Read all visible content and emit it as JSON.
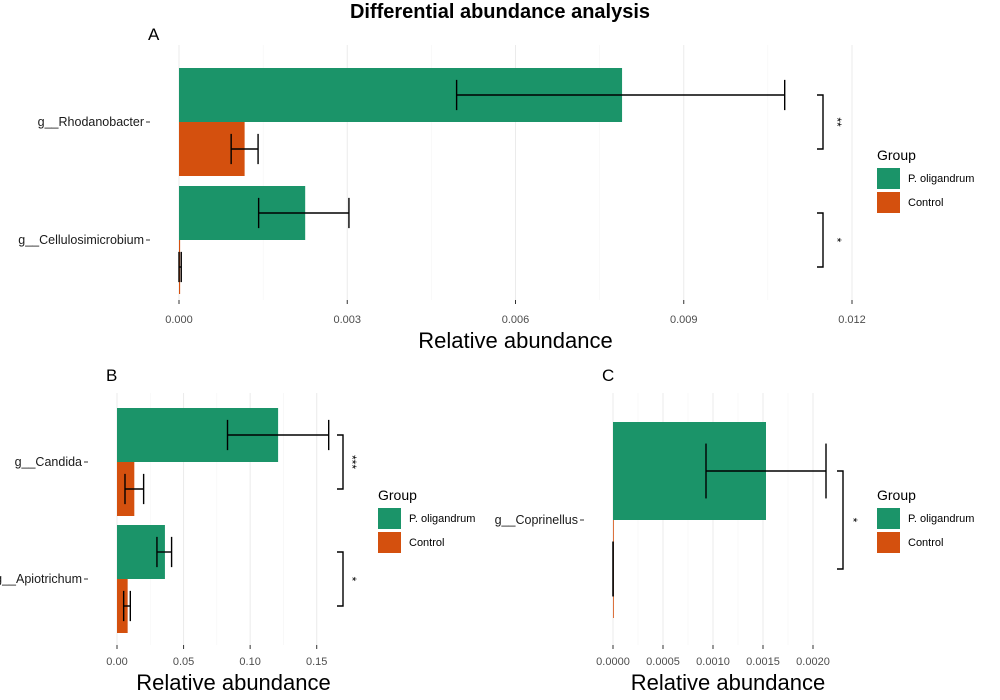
{
  "title": "Differential abundance analysis",
  "colors": {
    "P. oligandrum": "#1b9469",
    "Control": "#d4500e"
  },
  "chart_data": [
    {
      "panel": "A",
      "type": "bar",
      "orientation": "horizontal",
      "xlabel": "Relative abundance",
      "xlim": [
        0,
        0.012
      ],
      "xticks": [
        0,
        0.003,
        0.006,
        0.009,
        0.012
      ],
      "tick_labels": [
        "0.000",
        "0.003",
        "0.006",
        "0.009",
        "0.012"
      ],
      "categories": [
        "g__Rhodanobacter",
        "g__Cellulosimicrobium"
      ],
      "series": [
        {
          "name": "P. oligandrum",
          "values": [
            0.0079,
            0.00225
          ],
          "err_low": [
            0.00495,
            0.00142
          ],
          "err_high": [
            0.0108,
            0.00303
          ]
        },
        {
          "name": "Control",
          "values": [
            0.00117,
            2e-05
          ],
          "err_low": [
            0.00093,
            0.0
          ],
          "err_high": [
            0.00141,
            4e-05
          ]
        }
      ],
      "significance": [
        "**",
        "*"
      ],
      "legend": {
        "title": "Group",
        "entries": [
          "P. oligandrum",
          "Control"
        ],
        "position": "right"
      }
    },
    {
      "panel": "B",
      "type": "bar",
      "orientation": "horizontal",
      "xlabel": "Relative abundance",
      "xlim": [
        0,
        0.175
      ],
      "xticks": [
        0,
        0.05,
        0.1,
        0.15
      ],
      "tick_labels": [
        "0.00",
        "0.05",
        "0.10",
        "0.15"
      ],
      "categories": [
        "g__Candida",
        "g__Apiotrichum"
      ],
      "series": [
        {
          "name": "P. oligandrum",
          "values": [
            0.121,
            0.036
          ],
          "err_low": [
            0.083,
            0.03
          ],
          "err_high": [
            0.159,
            0.041
          ]
        },
        {
          "name": "Control",
          "values": [
            0.013,
            0.008
          ],
          "err_low": [
            0.006,
            0.005
          ],
          "err_high": [
            0.02,
            0.01
          ]
        }
      ],
      "significance": [
        "***",
        "*"
      ],
      "legend": {
        "title": "Group",
        "entries": [
          "P. oligandrum",
          "Control"
        ],
        "position": "right"
      }
    },
    {
      "panel": "C",
      "type": "bar",
      "orientation": "horizontal",
      "xlabel": "Relative abundance",
      "xlim": [
        0,
        0.0023
      ],
      "xticks": [
        0,
        0.0005,
        0.001,
        0.0015,
        0.002
      ],
      "tick_labels": [
        "0.0000",
        "0.0005",
        "0.0010",
        "0.0015",
        "0.0020"
      ],
      "categories": [
        "g__Coprinellus"
      ],
      "series": [
        {
          "name": "P. oligandrum",
          "values": [
            0.00153
          ],
          "err_low": [
            0.00093
          ],
          "err_high": [
            0.00213
          ]
        },
        {
          "name": "Control",
          "values": [
            5e-07
          ],
          "err_low": [
            0.0
          ],
          "err_high": [
            1e-06
          ]
        }
      ],
      "significance": [
        "*"
      ],
      "legend": {
        "title": "Group",
        "entries": [
          "P. oligandrum",
          "Control"
        ],
        "position": "right"
      }
    }
  ]
}
